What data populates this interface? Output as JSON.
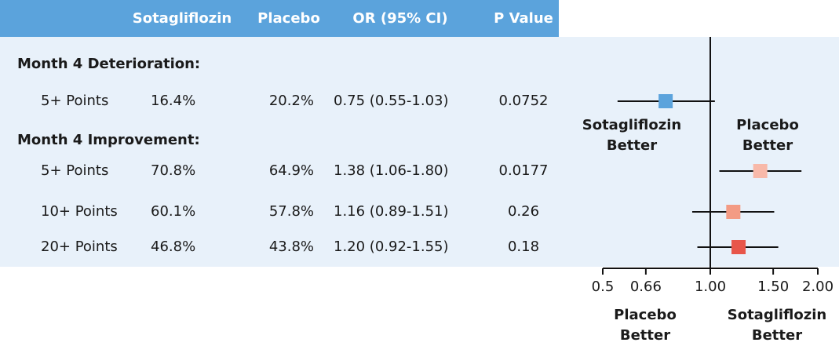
{
  "chart_data": {
    "type": "forest",
    "columns": [
      "Sotagliflozin",
      "Placebo",
      "OR (95% CI)",
      "P Value"
    ],
    "groups": [
      {
        "label": "Month 4 Deterioration:",
        "rows": [
          {
            "cells": [
              "5+ Points",
              "16.4%",
              "20.2%",
              "0.75 (0.55-1.03)",
              "0.0752"
            ],
            "or": 0.75,
            "lower": 0.55,
            "upper": 1.03,
            "color": "#5ba3dc"
          }
        ]
      },
      {
        "label": "Month 4 Improvement:",
        "rows": [
          {
            "cells": [
              "5+ Points",
              "70.8%",
              "64.9%",
              "1.38 (1.06-1.80)",
              "0.0177"
            ],
            "or": 1.38,
            "lower": 1.06,
            "upper": 1.8,
            "color": "#f8b9a9"
          },
          {
            "cells": [
              "10+ Points",
              "60.1%",
              "57.8%",
              "1.16 (0.89-1.51)",
              "0.26"
            ],
            "or": 1.16,
            "lower": 0.89,
            "upper": 1.51,
            "color": "#f39b84"
          },
          {
            "cells": [
              "20+ Points",
              "46.8%",
              "43.8%",
              "1.20 (0.92-1.55)",
              "0.18"
            ],
            "or": 1.2,
            "lower": 0.92,
            "upper": 1.55,
            "color": "#e8564a"
          }
        ]
      }
    ],
    "upper_left_label": [
      "Sotagliflozin",
      "Better"
    ],
    "upper_right_label": [
      "Placebo",
      "Better"
    ],
    "lower_left_label": [
      "Placebo",
      "Better"
    ],
    "lower_right_label": [
      "Sotagliflozin",
      "Better"
    ],
    "log_scale": true,
    "reference": 1,
    "xlim": [
      0.5,
      2
    ],
    "xticks": [
      0.5,
      0.66,
      {
        "value": 1,
        "label": "1.00"
      },
      {
        "value": 1.5,
        "label": "1.50"
      },
      {
        "value": 2,
        "label": "2.00"
      }
    ]
  }
}
